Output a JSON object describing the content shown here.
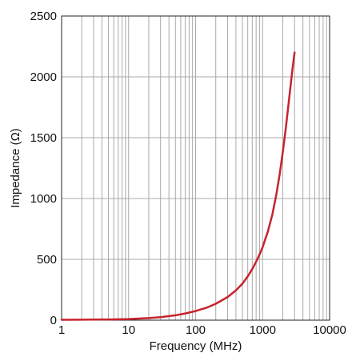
{
  "chart_data": {
    "type": "line",
    "xlabel": "Frequency (MHz)",
    "ylabel": "Impedance (Ω)",
    "xscale": "log",
    "xlim": [
      1,
      10000
    ],
    "ylim": [
      0,
      2500
    ],
    "x_ticks": [
      1,
      10,
      100,
      1000,
      10000
    ],
    "x_tick_labels": [
      "1",
      "10",
      "100",
      "1000",
      "10000"
    ],
    "y_ticks": [
      0,
      500,
      1000,
      1500,
      2000,
      2500
    ],
    "y_tick_labels": [
      "0",
      "500",
      "1000",
      "1500",
      "2000",
      "2500"
    ],
    "grid": true,
    "legend": "none",
    "series_color": "#c8232c",
    "series": [
      {
        "x": [
          1,
          2,
          5,
          10,
          20,
          30,
          50,
          70,
          100,
          150,
          200,
          300,
          400,
          500,
          600,
          700,
          800,
          900,
          1000,
          1200,
          1400,
          1600,
          1800,
          2000,
          2200,
          2500,
          2800,
          3000
        ],
        "y": [
          3,
          4,
          6,
          9,
          17,
          25,
          40,
          55,
          75,
          105,
          135,
          190,
          245,
          300,
          360,
          420,
          480,
          540,
          600,
          730,
          870,
          1030,
          1200,
          1380,
          1560,
          1830,
          2070,
          2200
        ]
      }
    ]
  }
}
